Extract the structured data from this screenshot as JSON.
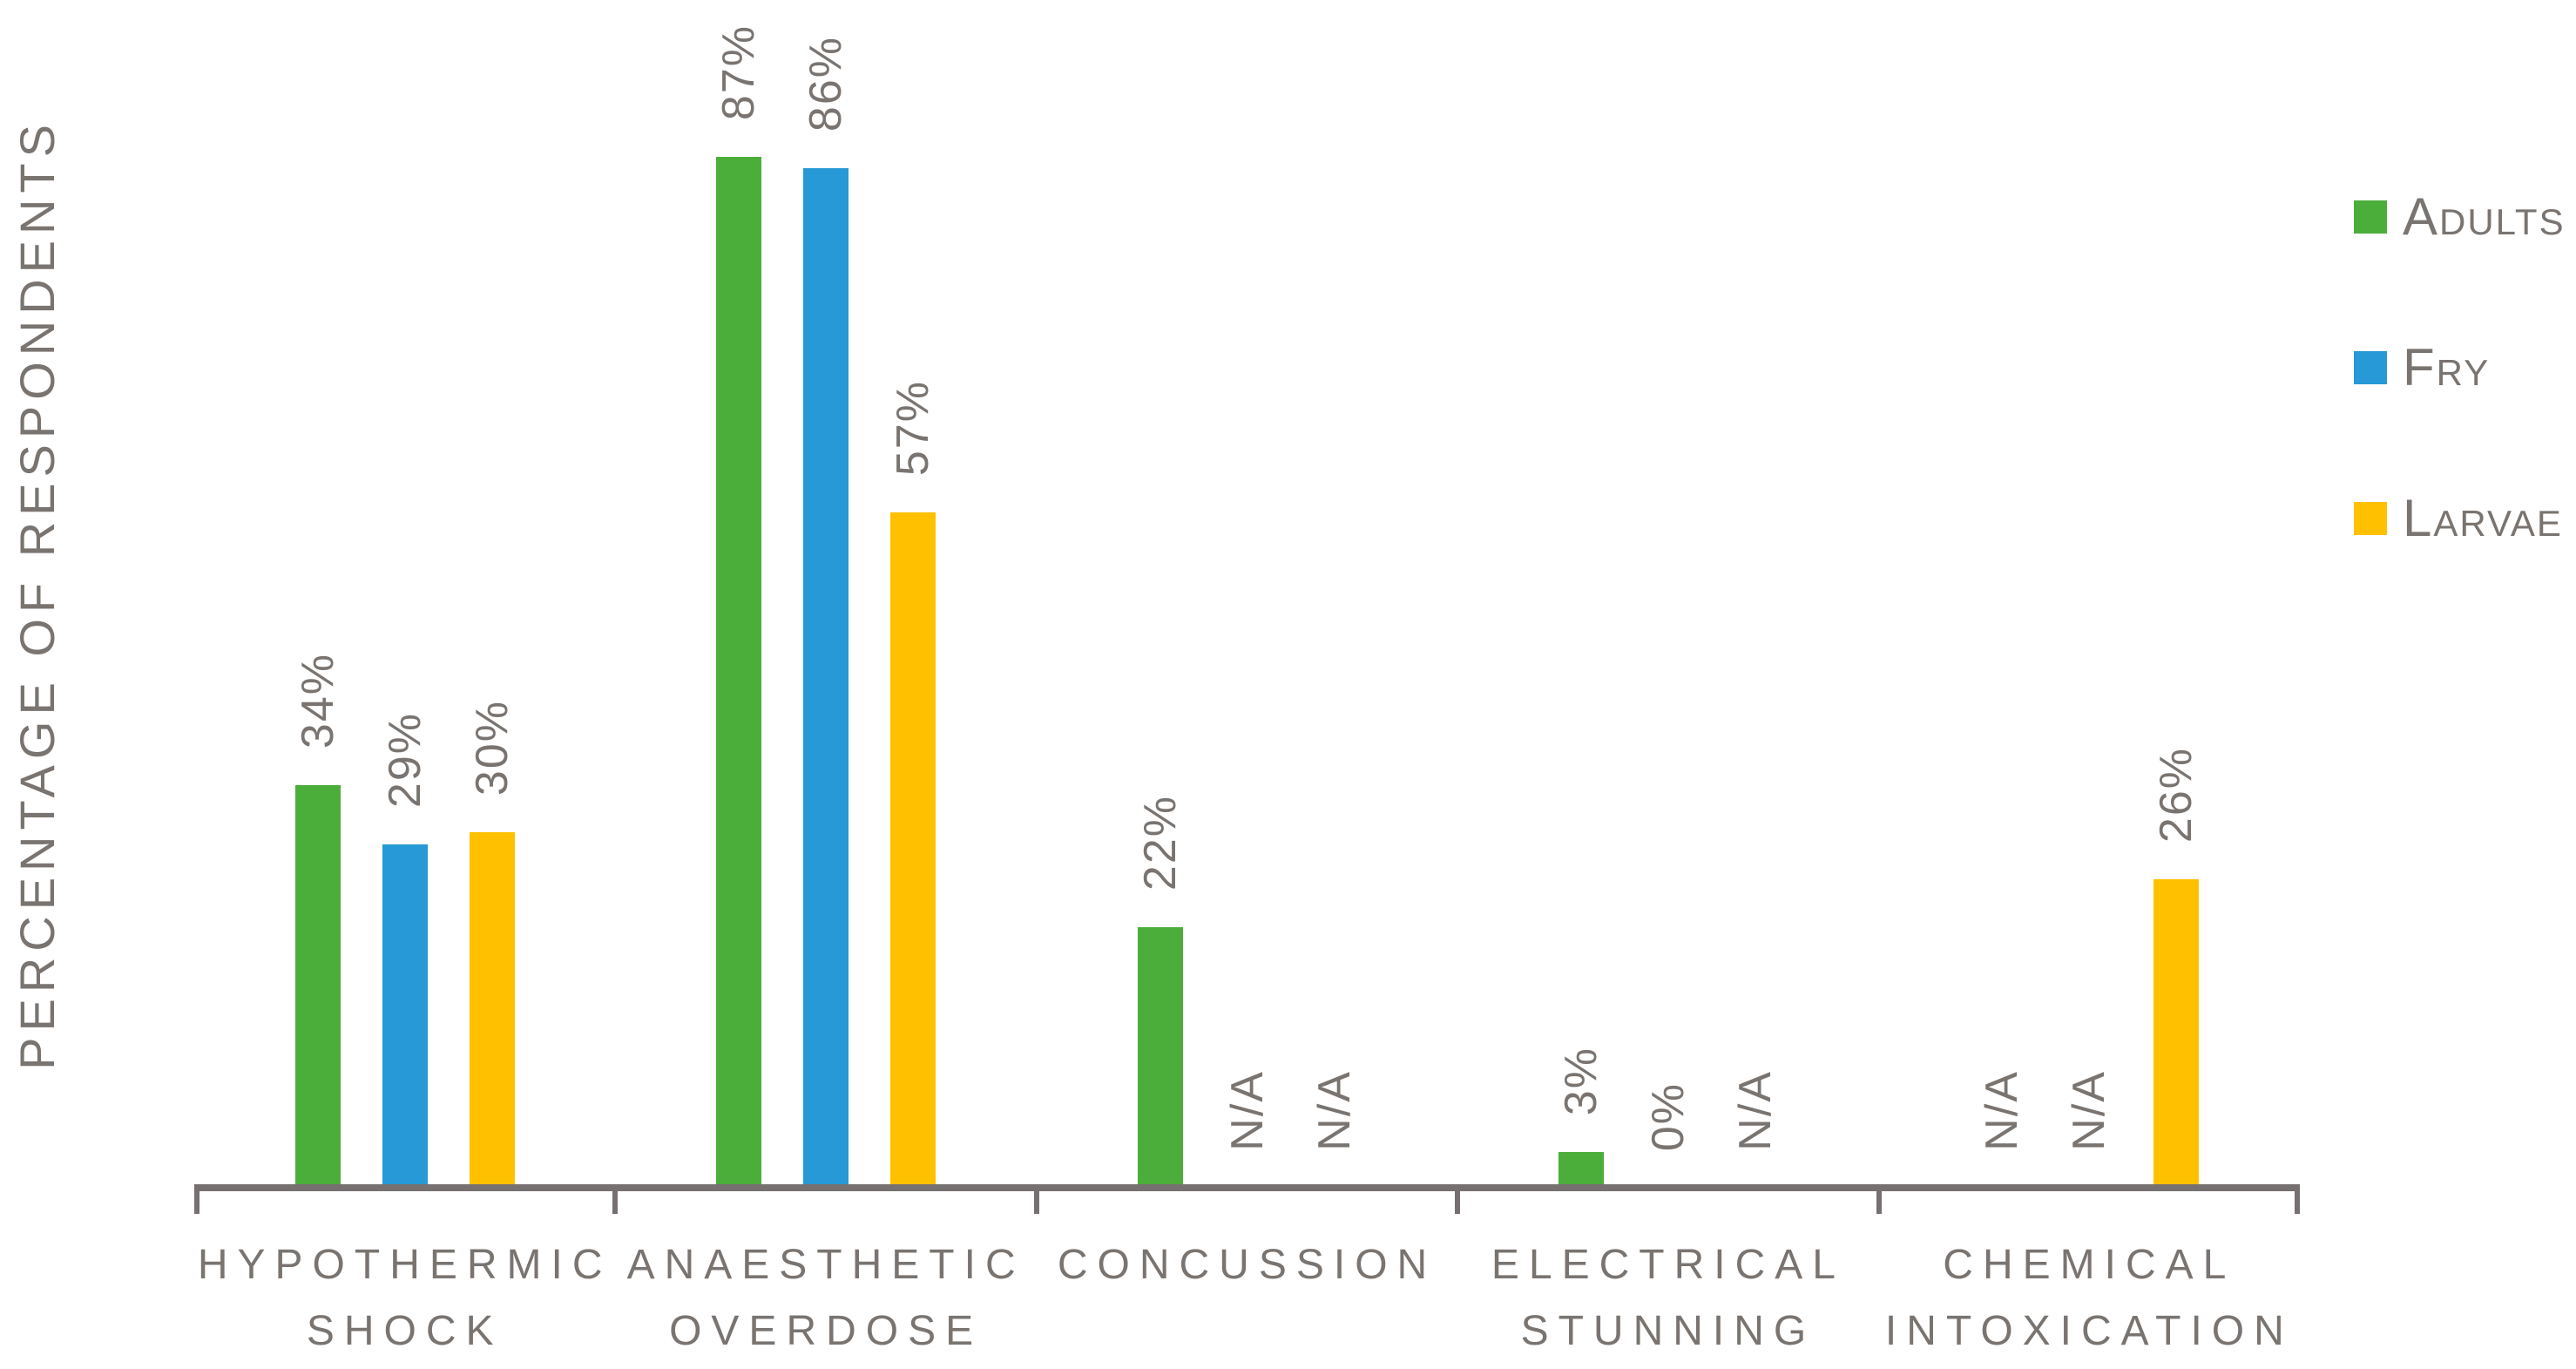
{
  "chart_data": {
    "type": "bar",
    "title": "",
    "xlabel": "",
    "ylabel": "PERCENTAGE OF RESPONDENTS",
    "ylim": [
      0,
      100
    ],
    "grid": false,
    "legend_position": "right",
    "y_axis_ticks_visible": false,
    "categories": [
      "HYPOTHERMIC SHOCK",
      "ANAESTHETIC OVERDOSE",
      "CONCUSSION",
      "ELECTRICAL STUNNING",
      "CHEMICAL INTOXICATION"
    ],
    "category_label_lines": [
      [
        "HYPOTHERMIC",
        "SHOCK"
      ],
      [
        "ANAESTHETIC",
        "OVERDOSE"
      ],
      [
        "CONCUSSION"
      ],
      [
        "ELECTRICAL",
        "STUNNING"
      ],
      [
        "CHEMICAL",
        "INTOXICATION"
      ]
    ],
    "series": [
      {
        "name": "Adults",
        "color": "#4bae3a",
        "values": [
          34,
          87,
          22,
          3,
          null
        ],
        "labels": [
          "34%",
          "87%",
          "22%",
          "3%",
          "N/A"
        ]
      },
      {
        "name": "Fry",
        "color": "#2699d6",
        "values": [
          29,
          86,
          null,
          0,
          null
        ],
        "labels": [
          "29%",
          "86%",
          "N/A",
          "0%",
          "N/A"
        ]
      },
      {
        "name": "Larvae",
        "color": "#ffc000",
        "values": [
          30,
          57,
          null,
          null,
          26
        ],
        "labels": [
          "30%",
          "57%",
          "N/A",
          "N/A",
          "26%"
        ]
      }
    ]
  },
  "colors": {
    "axis": "#767070",
    "text": "#7a7470"
  }
}
